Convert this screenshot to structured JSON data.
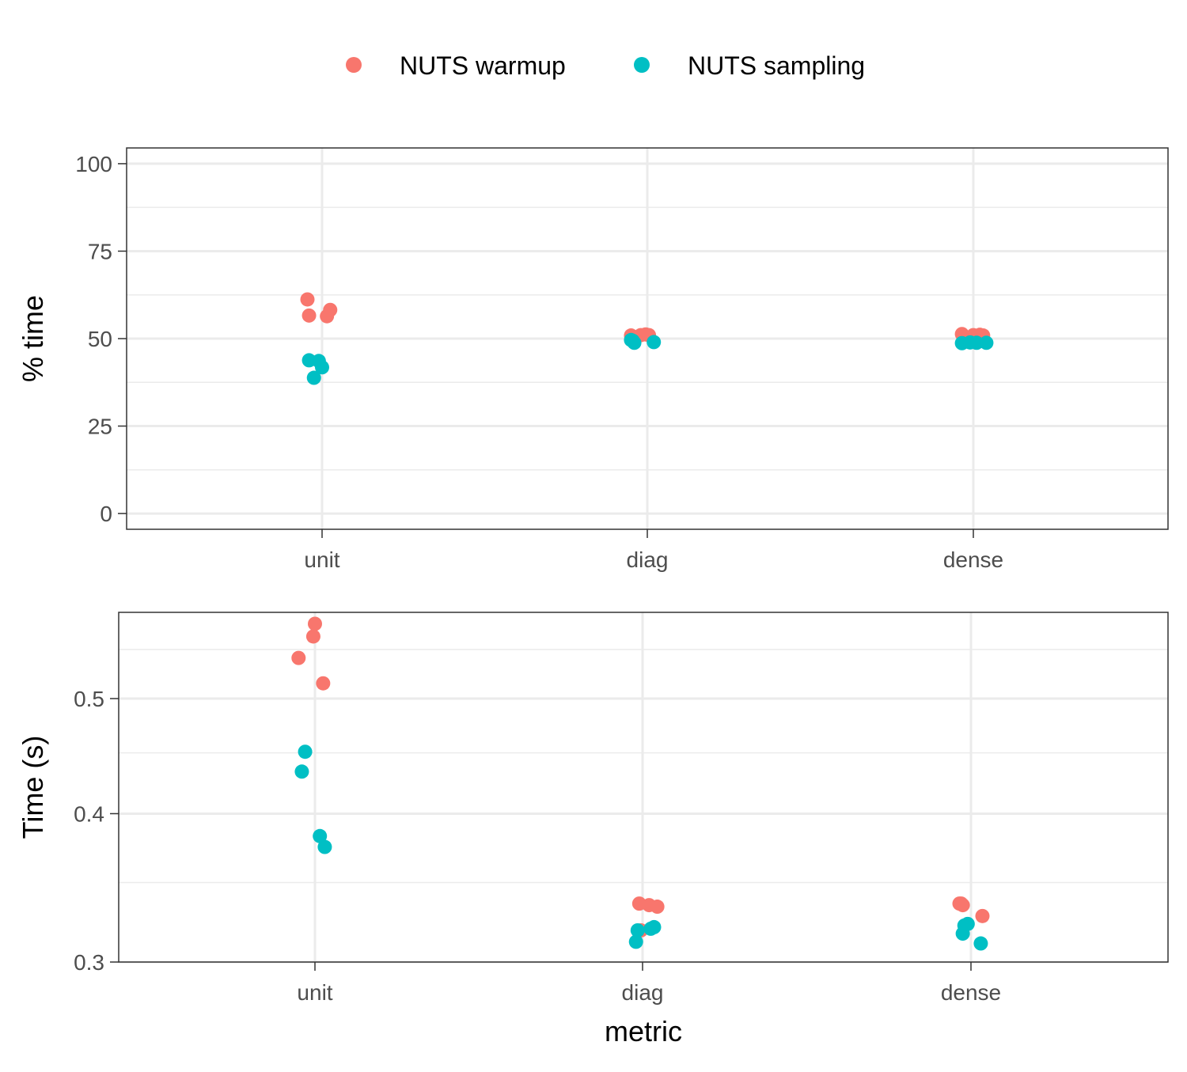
{
  "legend": {
    "items": [
      {
        "label": "NUTS warmup",
        "color": "#F8766D"
      },
      {
        "label": "NUTS sampling",
        "color": "#00BFC4"
      }
    ],
    "position": "top"
  },
  "chart_data": [
    {
      "type": "scatter",
      "ylabel": "% time",
      "xlabel": "",
      "categories": [
        "unit",
        "diag",
        "dense"
      ],
      "ylim": [
        -4.5,
        104.5
      ],
      "yticks": [
        0,
        25,
        50,
        75,
        100
      ],
      "yticklabels": [
        "0",
        "25",
        "50",
        "75",
        "100"
      ],
      "grid": true,
      "series": [
        {
          "name": "NUTS warmup",
          "color": "#F8766D",
          "points": [
            {
              "x": "unit",
              "jitter": -0.045,
              "y": 61.2
            },
            {
              "x": "unit",
              "jitter": -0.04,
              "y": 56.6
            },
            {
              "x": "unit",
              "jitter": 0.015,
              "y": 56.4
            },
            {
              "x": "unit",
              "jitter": 0.025,
              "y": 58.2
            },
            {
              "x": "diag",
              "jitter": -0.05,
              "y": 50.9
            },
            {
              "x": "diag",
              "jitter": -0.02,
              "y": 51.0
            },
            {
              "x": "diag",
              "jitter": -0.005,
              "y": 51.2
            },
            {
              "x": "diag",
              "jitter": 0.005,
              "y": 51.0
            },
            {
              "x": "dense",
              "jitter": -0.035,
              "y": 51.3
            },
            {
              "x": "dense",
              "jitter": 0.0,
              "y": 51.0
            },
            {
              "x": "dense",
              "jitter": 0.02,
              "y": 51.1
            },
            {
              "x": "dense",
              "jitter": 0.03,
              "y": 50.9
            }
          ]
        },
        {
          "name": "NUTS sampling",
          "color": "#00BFC4",
          "points": [
            {
              "x": "unit",
              "jitter": -0.04,
              "y": 43.8
            },
            {
              "x": "unit",
              "jitter": -0.025,
              "y": 38.8
            },
            {
              "x": "unit",
              "jitter": -0.01,
              "y": 43.6
            },
            {
              "x": "unit",
              "jitter": 0.0,
              "y": 41.8
            },
            {
              "x": "diag",
              "jitter": -0.045,
              "y": 49.4
            },
            {
              "x": "diag",
              "jitter": -0.04,
              "y": 48.8
            },
            {
              "x": "diag",
              "jitter": 0.02,
              "y": 49.0
            },
            {
              "x": "diag",
              "jitter": -0.05,
              "y": 49.6
            },
            {
              "x": "dense",
              "jitter": -0.035,
              "y": 48.7
            },
            {
              "x": "dense",
              "jitter": -0.01,
              "y": 48.9
            },
            {
              "x": "dense",
              "jitter": 0.01,
              "y": 48.8
            },
            {
              "x": "dense",
              "jitter": 0.04,
              "y": 48.8
            }
          ]
        }
      ]
    },
    {
      "type": "scatter",
      "ylabel": "Time (s)",
      "xlabel": "metric",
      "categories": [
        "unit",
        "diag",
        "dense"
      ],
      "yscale": "log",
      "ylim": [
        0.3,
        0.591
      ],
      "yticks": [
        0.3,
        0.4,
        0.5
      ],
      "yticklabels": [
        "0.3",
        "0.4",
        "0.5"
      ],
      "yminorticks": [
        0.35,
        0.45,
        0.55
      ],
      "grid": true,
      "series": [
        {
          "name": "NUTS warmup",
          "color": "#F8766D",
          "points": [
            {
              "x": "unit",
              "jitter": -0.05,
              "y": 0.541
            },
            {
              "x": "unit",
              "jitter": -0.005,
              "y": 0.564
            },
            {
              "x": "unit",
              "jitter": 0.0,
              "y": 0.578
            },
            {
              "x": "unit",
              "jitter": 0.025,
              "y": 0.515
            },
            {
              "x": "diag",
              "jitter": -0.01,
              "y": 0.336
            },
            {
              "x": "diag",
              "jitter": 0.02,
              "y": 0.335
            },
            {
              "x": "diag",
              "jitter": 0.045,
              "y": 0.334
            },
            {
              "x": "diag",
              "jitter": -0.005,
              "y": 0.319
            },
            {
              "x": "dense",
              "jitter": -0.035,
              "y": 0.336
            },
            {
              "x": "dense",
              "jitter": -0.025,
              "y": 0.335
            },
            {
              "x": "dense",
              "jitter": 0.035,
              "y": 0.328
            },
            {
              "x": "dense",
              "jitter": -0.03,
              "y": 0.336
            }
          ]
        },
        {
          "name": "NUTS sampling",
          "color": "#00BFC4",
          "points": [
            {
              "x": "unit",
              "jitter": -0.04,
              "y": 0.434
            },
            {
              "x": "unit",
              "jitter": -0.03,
              "y": 0.451
            },
            {
              "x": "unit",
              "jitter": 0.015,
              "y": 0.383
            },
            {
              "x": "unit",
              "jitter": 0.03,
              "y": 0.375
            },
            {
              "x": "diag",
              "jitter": -0.02,
              "y": 0.312
            },
            {
              "x": "diag",
              "jitter": -0.015,
              "y": 0.319
            },
            {
              "x": "diag",
              "jitter": 0.025,
              "y": 0.32
            },
            {
              "x": "diag",
              "jitter": 0.035,
              "y": 0.321
            },
            {
              "x": "dense",
              "jitter": -0.025,
              "y": 0.317
            },
            {
              "x": "dense",
              "jitter": -0.02,
              "y": 0.322
            },
            {
              "x": "dense",
              "jitter": -0.01,
              "y": 0.323
            },
            {
              "x": "dense",
              "jitter": 0.03,
              "y": 0.311
            }
          ]
        }
      ]
    }
  ]
}
